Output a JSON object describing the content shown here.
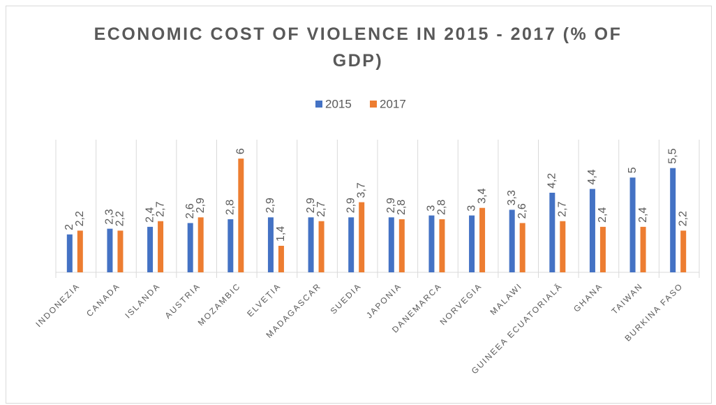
{
  "chart_data": {
    "type": "bar",
    "title": "ECONOMIC COST OF VIOLENCE IN 2015 - 2017 (% OF GDP)",
    "categories": [
      "INDONEZIA",
      "CANADA",
      "ISLANDA",
      "AUSTRIA",
      "MOZAMBIC",
      "ELVEȚIA",
      "MADAGASCAR",
      "SUEDIA",
      "JAPONIA",
      "DANEMARCA",
      "NORVEGIA",
      "MALAWI",
      "GUINEEA ECUATORIALĂ",
      "GHANA",
      "TAIWAN",
      "BURKINA FASO"
    ],
    "series": [
      {
        "name": "2015",
        "color": "#4472c4",
        "values": [
          2,
          2.3,
          2.4,
          2.6,
          2.8,
          2.9,
          2.9,
          2.9,
          2.9,
          3,
          3,
          3.3,
          4.2,
          4.4,
          5,
          5.5
        ],
        "value_labels": [
          "2",
          "2,3",
          "2,4",
          "2,6",
          "2,8",
          "2,9",
          "2,9",
          "2,9",
          "2,9",
          "3",
          "3",
          "3,3",
          "4,2",
          "4,4",
          "5",
          "5,5"
        ]
      },
      {
        "name": "2017",
        "color": "#ed7d31",
        "values": [
          2.2,
          2.2,
          2.7,
          2.9,
          6,
          1.4,
          2.7,
          3.7,
          2.8,
          2.8,
          3.4,
          2.6,
          2.7,
          2.4,
          2.4,
          2.2
        ],
        "value_labels": [
          "2,2",
          "2,2",
          "2,7",
          "2,9",
          "6",
          "1,4",
          "2,7",
          "3,7",
          "2,8",
          "2,8",
          "3,4",
          "2,6",
          "2,7",
          "2,4",
          "2,4",
          "2,2"
        ]
      }
    ],
    "ylim": [
      0,
      7
    ],
    "legend": "top"
  }
}
